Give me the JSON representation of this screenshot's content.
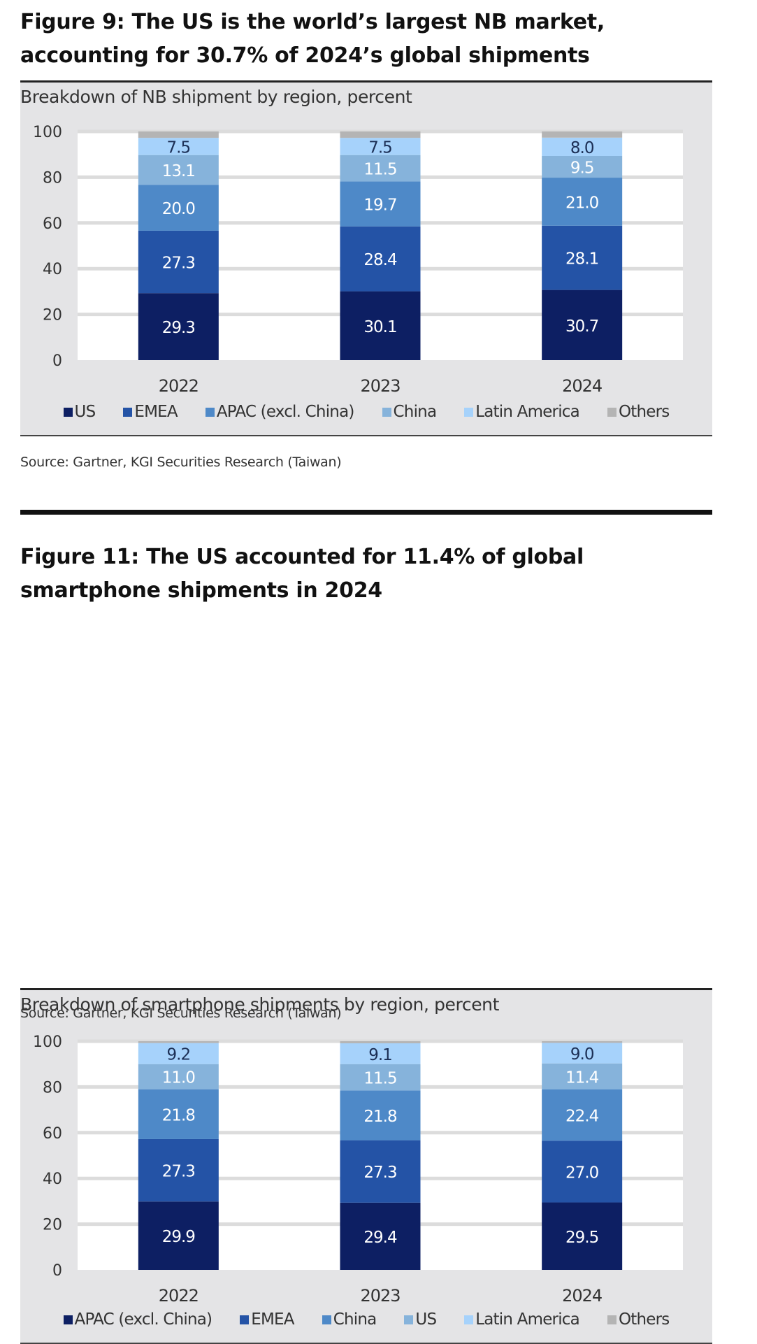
{
  "figures": [
    {
      "title_line1": "Figure 9: The US is the world’s largest NB market,",
      "title_line2": "accounting for 30.7% of 2024’s global shipments",
      "subtitle": "Breakdown of NB shipment by region, percent",
      "source": "Source: Gartner, KGI Securities Research (Taiwan)"
    },
    {
      "title_line1": "Figure 11: The US accounted for 11.4% of global",
      "title_line2": "smartphone shipments in 2024",
      "subtitle": "Breakdown of smartphone shipments by region, percent",
      "source": "Source: Gartner, KGI Securities Research (Taiwan)"
    }
  ],
  "chart_data": [
    {
      "type": "bar",
      "stacked": true,
      "title": "Figure 9: The US is the world’s largest NB market, accounting for 30.7% of 2024’s global shipments",
      "subtitle": "Breakdown of NB shipment by region, percent",
      "categories": [
        "2022",
        "2023",
        "2024"
      ],
      "ylim": [
        0,
        100
      ],
      "yticks": [
        0,
        20,
        40,
        60,
        80,
        100
      ],
      "grid": true,
      "legend_position": "bottom",
      "series": [
        {
          "name": "US",
          "color": "#0d1f63",
          "label_color": "#ffffff",
          "values": [
            29.3,
            30.1,
            30.7
          ],
          "labels": [
            "29.3",
            "30.1",
            "30.7"
          ]
        },
        {
          "name": "EMEA",
          "color": "#2453a6",
          "label_color": "#ffffff",
          "values": [
            27.3,
            28.4,
            28.1
          ],
          "labels": [
            "27.3",
            "28.4",
            "28.1"
          ]
        },
        {
          "name": "APAC (excl. China)",
          "color": "#4e89c8",
          "label_color": "#ffffff",
          "values": [
            20.0,
            19.7,
            21.0
          ],
          "labels": [
            "20.0",
            "19.7",
            "21.0"
          ]
        },
        {
          "name": "China",
          "color": "#86b3db",
          "label_color": "#ffffff",
          "values": [
            13.1,
            11.5,
            9.5
          ],
          "labels": [
            "13.1",
            "11.5",
            "9.5"
          ]
        },
        {
          "name": "Latin America",
          "color": "#a6d2fb",
          "label_color": "#1c2f55",
          "values": [
            7.5,
            7.5,
            8.0
          ],
          "labels": [
            "7.5",
            "7.5",
            "8.0"
          ]
        },
        {
          "name": "Others",
          "color": "#b4b4b4",
          "label_color": "#333333",
          "values": [
            2.8,
            2.8,
            2.7
          ],
          "labels": [
            "",
            "",
            ""
          ]
        }
      ]
    },
    {
      "type": "bar",
      "stacked": true,
      "title": "Figure 11: The US accounted for 11.4% of global smartphone shipments in 2024",
      "subtitle": "Breakdown of smartphone shipments by region, percent",
      "categories": [
        "2022",
        "2023",
        "2024"
      ],
      "ylim": [
        0,
        100
      ],
      "yticks": [
        0,
        20,
        40,
        60,
        80,
        100
      ],
      "grid": true,
      "legend_position": "bottom",
      "series": [
        {
          "name": "APAC (excl. China)",
          "color": "#0d1f63",
          "label_color": "#ffffff",
          "values": [
            29.9,
            29.4,
            29.5
          ],
          "labels": [
            "29.9",
            "29.4",
            "29.5"
          ]
        },
        {
          "name": "EMEA",
          "color": "#2453a6",
          "label_color": "#ffffff",
          "values": [
            27.3,
            27.3,
            27.0
          ],
          "labels": [
            "27.3",
            "27.3",
            "27.0"
          ]
        },
        {
          "name": "China",
          "color": "#4e89c8",
          "label_color": "#ffffff",
          "values": [
            21.8,
            21.8,
            22.4
          ],
          "labels": [
            "21.8",
            "21.8",
            "22.4"
          ]
        },
        {
          "name": "US",
          "color": "#86b3db",
          "label_color": "#ffffff",
          "values": [
            11.0,
            11.5,
            11.4
          ],
          "labels": [
            "11.0",
            "11.5",
            "11.4"
          ]
        },
        {
          "name": "Latin America",
          "color": "#a6d2fb",
          "label_color": "#1c2f55",
          "values": [
            9.2,
            9.1,
            9.0
          ],
          "labels": [
            "9.2",
            "9.1",
            "9.0"
          ]
        },
        {
          "name": "Others",
          "color": "#b4b4b4",
          "label_color": "#333333",
          "values": [
            0.8,
            0.9,
            0.7
          ],
          "labels": [
            "",
            "",
            ""
          ]
        }
      ]
    }
  ]
}
